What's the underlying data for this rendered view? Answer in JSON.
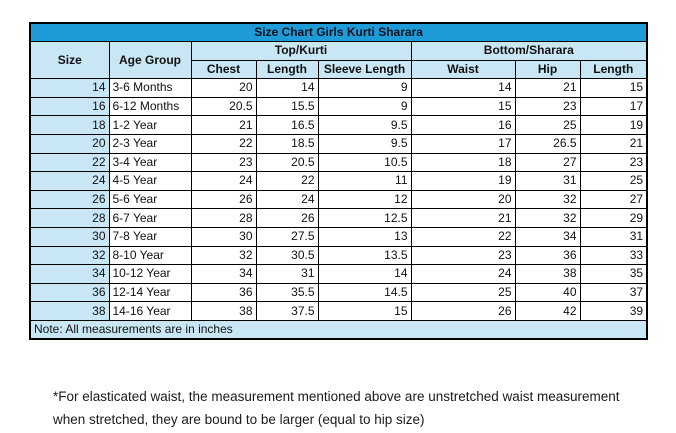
{
  "chart_data": {
    "type": "table",
    "title": "Size Chart Girls Kurti Sharara",
    "column_groups": [
      {
        "label": "Top/Kurti",
        "span": 3
      },
      {
        "label": "Bottom/Sharara",
        "span": 3
      }
    ],
    "columns": [
      "Size",
      "Age Group",
      "Chest",
      "Length",
      "Sleeve Length",
      "Waist",
      "Hip",
      "Length"
    ],
    "rows": [
      [
        14,
        "3-6 Months",
        20,
        14,
        9,
        14,
        21,
        15
      ],
      [
        16,
        "6-12 Months",
        20.5,
        15.5,
        9,
        15,
        23,
        17
      ],
      [
        18,
        "1-2 Year",
        21,
        16.5,
        9.5,
        16,
        25,
        19
      ],
      [
        20,
        "2-3 Year",
        22,
        18.5,
        9.5,
        17,
        26.5,
        21
      ],
      [
        22,
        "3-4 Year",
        23,
        20.5,
        10.5,
        18,
        27,
        23
      ],
      [
        24,
        "4-5 Year",
        24,
        22,
        11,
        19,
        31,
        25
      ],
      [
        26,
        "5-6 Year",
        26,
        24,
        12,
        20,
        32,
        27
      ],
      [
        28,
        "6-7 Year",
        28,
        26,
        12.5,
        21,
        32,
        29
      ],
      [
        30,
        "7-8 Year",
        30,
        27.5,
        13,
        22,
        34,
        31
      ],
      [
        32,
        "8-10 Year",
        32,
        30.5,
        13.5,
        23,
        36,
        33
      ],
      [
        34,
        "10-12 Year",
        34,
        31,
        14,
        24,
        38,
        35
      ],
      [
        36,
        "12-14 Year",
        36,
        35.5,
        14.5,
        25,
        40,
        37
      ],
      [
        38,
        "14-16 Year",
        38,
        37.5,
        15,
        26,
        42,
        39
      ]
    ],
    "note": "Note: All measurements are in inches",
    "units": "inches"
  },
  "footer": {
    "line1": "*For elasticated waist, the measurement mentioned above are unstretched waist measurement",
    "line2": "when stretched, they are bound to be larger (equal to hip size)"
  },
  "colors": {
    "title_bg": "#1F9BD7",
    "header_bg": "#C9E6F5",
    "border": "#000000"
  }
}
